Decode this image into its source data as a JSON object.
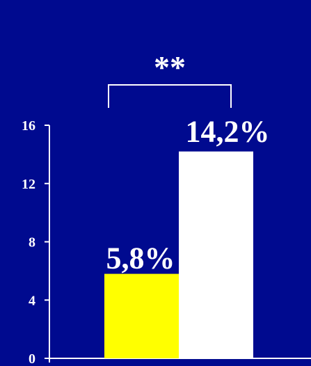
{
  "chart_data": {
    "type": "bar",
    "categories": [
      "",
      ""
    ],
    "values": [
      5.8,
      14.2
    ],
    "data_labels": [
      "5,8%",
      "14,2%"
    ],
    "bar_colors": [
      "#ffff00",
      "#ffffff"
    ],
    "yticks": [
      0,
      4,
      8,
      12,
      16
    ],
    "ytick_labels": [
      "0",
      "4",
      "8",
      "12",
      "16"
    ],
    "ylim": [
      0,
      16
    ],
    "grid": false,
    "significance": {
      "label": "**",
      "between": [
        0,
        1
      ]
    }
  },
  "colors": {
    "background": "#000a8f",
    "axis": "#ffffff",
    "text": "#ffffff"
  }
}
